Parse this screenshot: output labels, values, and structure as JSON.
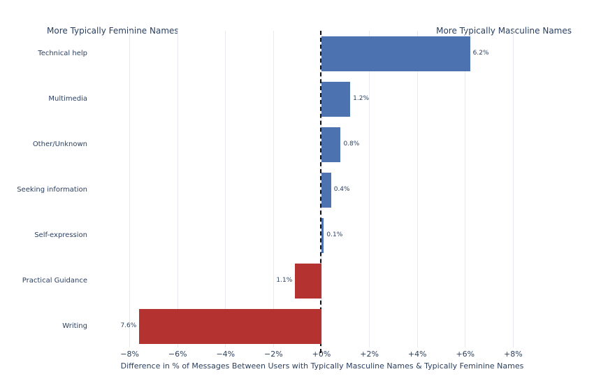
{
  "chart_data": {
    "type": "bar",
    "orientation": "horizontal",
    "title": "",
    "left_annotation": "More Typically Feminine Names",
    "right_annotation": "More Typically Masculine Names",
    "xlabel": "Difference in % of Messages Between Users with Typically Masculine Names & Typically Feminine Names",
    "ylabel": "",
    "categories": [
      "Technical help",
      "Multimedia",
      "Other/Unknown",
      "Seeking information",
      "Self-expression",
      "Practical Guidance",
      "Writing"
    ],
    "values": [
      6.2,
      1.2,
      0.8,
      0.4,
      0.1,
      -1.1,
      -7.6
    ],
    "bar_labels": [
      "6.2%",
      "1.2%",
      "0.8%",
      "0.4%",
      "0.1%",
      "1.1%",
      "7.6%"
    ],
    "x_tick_labels": [
      "−8%",
      "−6%",
      "−4%",
      "−2%",
      "+0%",
      "+2%",
      "+4%",
      "+6%",
      "+8%"
    ],
    "x_tick_values": [
      -8,
      -6,
      -4,
      -2,
      0,
      2,
      4,
      6,
      8
    ],
    "xlim": [
      -8.5,
      8.5
    ],
    "grid": true,
    "zero_line_style": "dashed",
    "legend_position": "none",
    "colors": {
      "positive_bar": "#4c72b0",
      "negative_bar": "#b43330",
      "zero_line": "#141414",
      "gridline": "#e9e9f2",
      "text": "#2a3f5f",
      "background": "#ffffff"
    }
  }
}
